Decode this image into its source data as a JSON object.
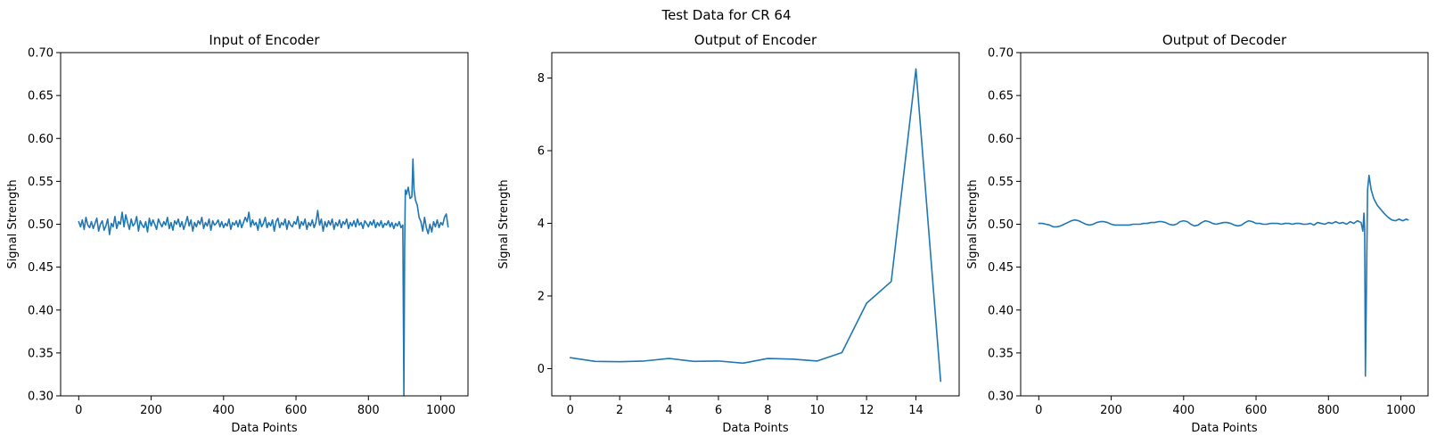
{
  "figure_title": "Test Data for CR 64",
  "colors": {
    "series": "#1f77b4"
  },
  "chart_data": [
    {
      "type": "line",
      "title": "Input of Encoder",
      "xlabel": "Data Points",
      "ylabel": "Signal Strength",
      "xlim": [
        -50,
        1075
      ],
      "ylim": [
        0.3,
        0.7
      ],
      "xticks": [
        0,
        200,
        400,
        600,
        800,
        1000
      ],
      "yticks": [
        0.3,
        0.35,
        0.4,
        0.45,
        0.5,
        0.55,
        0.6,
        0.65,
        0.7
      ],
      "grid": false,
      "series": [
        {
          "color": "#1f77b4",
          "x": [
            0,
            5,
            10,
            15,
            20,
            25,
            30,
            35,
            40,
            45,
            50,
            55,
            60,
            65,
            70,
            75,
            80,
            85,
            90,
            95,
            100,
            105,
            110,
            115,
            120,
            125,
            130,
            135,
            140,
            145,
            150,
            155,
            160,
            165,
            170,
            175,
            180,
            185,
            190,
            195,
            200,
            205,
            210,
            215,
            220,
            225,
            230,
            235,
            240,
            245,
            250,
            255,
            260,
            265,
            270,
            275,
            280,
            285,
            290,
            295,
            300,
            305,
            310,
            315,
            320,
            325,
            330,
            335,
            340,
            345,
            350,
            355,
            360,
            365,
            370,
            375,
            380,
            385,
            390,
            395,
            400,
            405,
            410,
            415,
            420,
            425,
            430,
            435,
            440,
            445,
            450,
            455,
            460,
            465,
            470,
            475,
            480,
            485,
            490,
            495,
            500,
            505,
            510,
            515,
            520,
            525,
            530,
            535,
            540,
            545,
            550,
            555,
            560,
            565,
            570,
            575,
            580,
            585,
            590,
            595,
            600,
            605,
            610,
            615,
            620,
            625,
            630,
            635,
            640,
            645,
            650,
            655,
            660,
            665,
            670,
            675,
            680,
            685,
            690,
            695,
            700,
            705,
            710,
            715,
            720,
            725,
            730,
            735,
            740,
            745,
            750,
            755,
            760,
            765,
            770,
            775,
            780,
            785,
            790,
            795,
            800,
            805,
            810,
            815,
            820,
            825,
            830,
            835,
            840,
            845,
            850,
            855,
            860,
            865,
            870,
            875,
            880,
            885,
            890,
            895,
            898,
            900,
            902,
            905,
            910,
            915,
            920,
            923,
            926,
            930,
            935,
            940,
            945,
            950,
            955,
            960,
            965,
            970,
            975,
            980,
            985,
            990,
            995,
            1000,
            1005,
            1010,
            1015,
            1020
          ],
          "y": [
            0.503,
            0.497,
            0.505,
            0.494,
            0.508,
            0.499,
            0.496,
            0.503,
            0.495,
            0.501,
            0.507,
            0.492,
            0.5,
            0.504,
            0.493,
            0.498,
            0.506,
            0.488,
            0.501,
            0.497,
            0.509,
            0.495,
            0.503,
            0.5,
            0.514,
            0.497,
            0.511,
            0.502,
            0.494,
            0.506,
            0.498,
            0.501,
            0.509,
            0.492,
            0.504,
            0.499,
            0.496,
            0.503,
            0.491,
            0.507,
            0.498,
            0.505,
            0.5,
            0.494,
            0.506,
            0.501,
            0.497,
            0.503,
            0.499,
            0.508,
            0.495,
            0.502,
            0.493,
            0.504,
            0.5,
            0.506,
            0.497,
            0.503,
            0.494,
            0.501,
            0.509,
            0.498,
            0.505,
            0.492,
            0.502,
            0.497,
            0.504,
            0.5,
            0.508,
            0.495,
            0.502,
            0.498,
            0.506,
            0.493,
            0.504,
            0.499,
            0.501,
            0.505,
            0.497,
            0.503,
            0.496,
            0.501,
            0.498,
            0.506,
            0.494,
            0.502,
            0.499,
            0.504,
            0.497,
            0.505,
            0.496,
            0.502,
            0.508,
            0.503,
            0.514,
            0.497,
            0.505,
            0.499,
            0.502,
            0.493,
            0.506,
            0.497,
            0.501,
            0.508,
            0.496,
            0.502,
            0.498,
            0.505,
            0.492,
            0.503,
            0.507,
            0.496,
            0.502,
            0.499,
            0.506,
            0.494,
            0.504,
            0.499,
            0.497,
            0.503,
            0.5,
            0.509,
            0.495,
            0.503,
            0.499,
            0.506,
            0.494,
            0.502,
            0.498,
            0.505,
            0.496,
            0.502,
            0.516,
            0.499,
            0.506,
            0.492,
            0.503,
            0.497,
            0.504,
            0.499,
            0.506,
            0.494,
            0.502,
            0.498,
            0.505,
            0.496,
            0.503,
            0.5,
            0.506,
            0.495,
            0.502,
            0.498,
            0.504,
            0.497,
            0.506,
            0.499,
            0.502,
            0.495,
            0.504,
            0.501,
            0.497,
            0.503,
            0.499,
            0.505,
            0.496,
            0.502,
            0.498,
            0.504,
            0.496,
            0.501,
            0.499,
            0.504,
            0.497,
            0.502,
            0.495,
            0.501,
            0.498,
            0.503,
            0.496,
            0.499,
            0.3,
            0.47,
            0.54,
            0.535,
            0.543,
            0.53,
            0.532,
            0.576,
            0.54,
            0.528,
            0.522,
            0.508,
            0.503,
            0.492,
            0.508,
            0.496,
            0.489,
            0.5,
            0.491,
            0.503,
            0.497,
            0.505,
            0.496,
            0.502,
            0.499,
            0.508,
            0.512,
            0.497
          ]
        }
      ]
    },
    {
      "type": "line",
      "title": "Output of Encoder",
      "xlabel": "Data Points",
      "ylabel": "Signal Strength",
      "xlim": [
        -0.75,
        15.75
      ],
      "ylim": [
        -0.75,
        8.7
      ],
      "xticks": [
        0,
        2,
        4,
        6,
        8,
        10,
        12,
        14
      ],
      "yticks": [
        0,
        2,
        4,
        6,
        8
      ],
      "grid": false,
      "series": [
        {
          "color": "#1f77b4",
          "x": [
            0,
            1,
            2,
            3,
            4,
            5,
            6,
            7,
            8,
            9,
            10,
            11,
            12,
            13,
            14,
            15
          ],
          "y": [
            0.3,
            0.2,
            0.19,
            0.21,
            0.28,
            0.2,
            0.21,
            0.15,
            0.28,
            0.26,
            0.21,
            0.44,
            1.8,
            2.4,
            8.25,
            -0.35
          ]
        }
      ]
    },
    {
      "type": "line",
      "title": "Output of Decoder",
      "xlabel": "Data Points",
      "ylabel": "Signal Strength",
      "xlim": [
        -50,
        1075
      ],
      "ylim": [
        0.3,
        0.7
      ],
      "xticks": [
        0,
        200,
        400,
        600,
        800,
        1000
      ],
      "yticks": [
        0.3,
        0.35,
        0.4,
        0.45,
        0.5,
        0.55,
        0.6,
        0.65,
        0.7
      ],
      "grid": false,
      "series": [
        {
          "color": "#1f77b4",
          "x": [
            0,
            10,
            20,
            30,
            40,
            50,
            60,
            70,
            80,
            90,
            100,
            110,
            120,
            130,
            140,
            150,
            160,
            170,
            180,
            190,
            200,
            210,
            220,
            230,
            240,
            250,
            260,
            270,
            280,
            290,
            300,
            310,
            320,
            330,
            340,
            350,
            360,
            370,
            380,
            390,
            400,
            410,
            420,
            430,
            440,
            450,
            460,
            470,
            480,
            490,
            500,
            510,
            520,
            530,
            540,
            550,
            560,
            570,
            580,
            590,
            600,
            610,
            620,
            630,
            640,
            650,
            660,
            670,
            680,
            690,
            700,
            710,
            720,
            730,
            740,
            750,
            760,
            770,
            780,
            790,
            800,
            810,
            820,
            830,
            840,
            850,
            860,
            870,
            880,
            890,
            895,
            898,
            900,
            902,
            905,
            908,
            912,
            918,
            925,
            935,
            945,
            955,
            965,
            975,
            985,
            995,
            1005,
            1015,
            1020
          ],
          "y": [
            0.501,
            0.501,
            0.5,
            0.499,
            0.497,
            0.497,
            0.498,
            0.5,
            0.502,
            0.504,
            0.505,
            0.504,
            0.502,
            0.5,
            0.499,
            0.5,
            0.502,
            0.503,
            0.503,
            0.502,
            0.5,
            0.499,
            0.499,
            0.499,
            0.499,
            0.499,
            0.5,
            0.5,
            0.5,
            0.501,
            0.501,
            0.502,
            0.502,
            0.503,
            0.503,
            0.502,
            0.5,
            0.499,
            0.5,
            0.503,
            0.504,
            0.503,
            0.5,
            0.498,
            0.499,
            0.502,
            0.504,
            0.503,
            0.501,
            0.5,
            0.501,
            0.502,
            0.502,
            0.501,
            0.499,
            0.498,
            0.499,
            0.502,
            0.504,
            0.503,
            0.501,
            0.501,
            0.5,
            0.5,
            0.501,
            0.501,
            0.501,
            0.5,
            0.501,
            0.501,
            0.5,
            0.501,
            0.501,
            0.5,
            0.5,
            0.501,
            0.499,
            0.502,
            0.501,
            0.5,
            0.502,
            0.501,
            0.503,
            0.501,
            0.502,
            0.5,
            0.503,
            0.501,
            0.504,
            0.502,
            0.492,
            0.513,
            0.495,
            0.323,
            0.43,
            0.54,
            0.557,
            0.54,
            0.53,
            0.522,
            0.517,
            0.512,
            0.508,
            0.505,
            0.504,
            0.506,
            0.504,
            0.506,
            0.505
          ]
        }
      ]
    }
  ]
}
